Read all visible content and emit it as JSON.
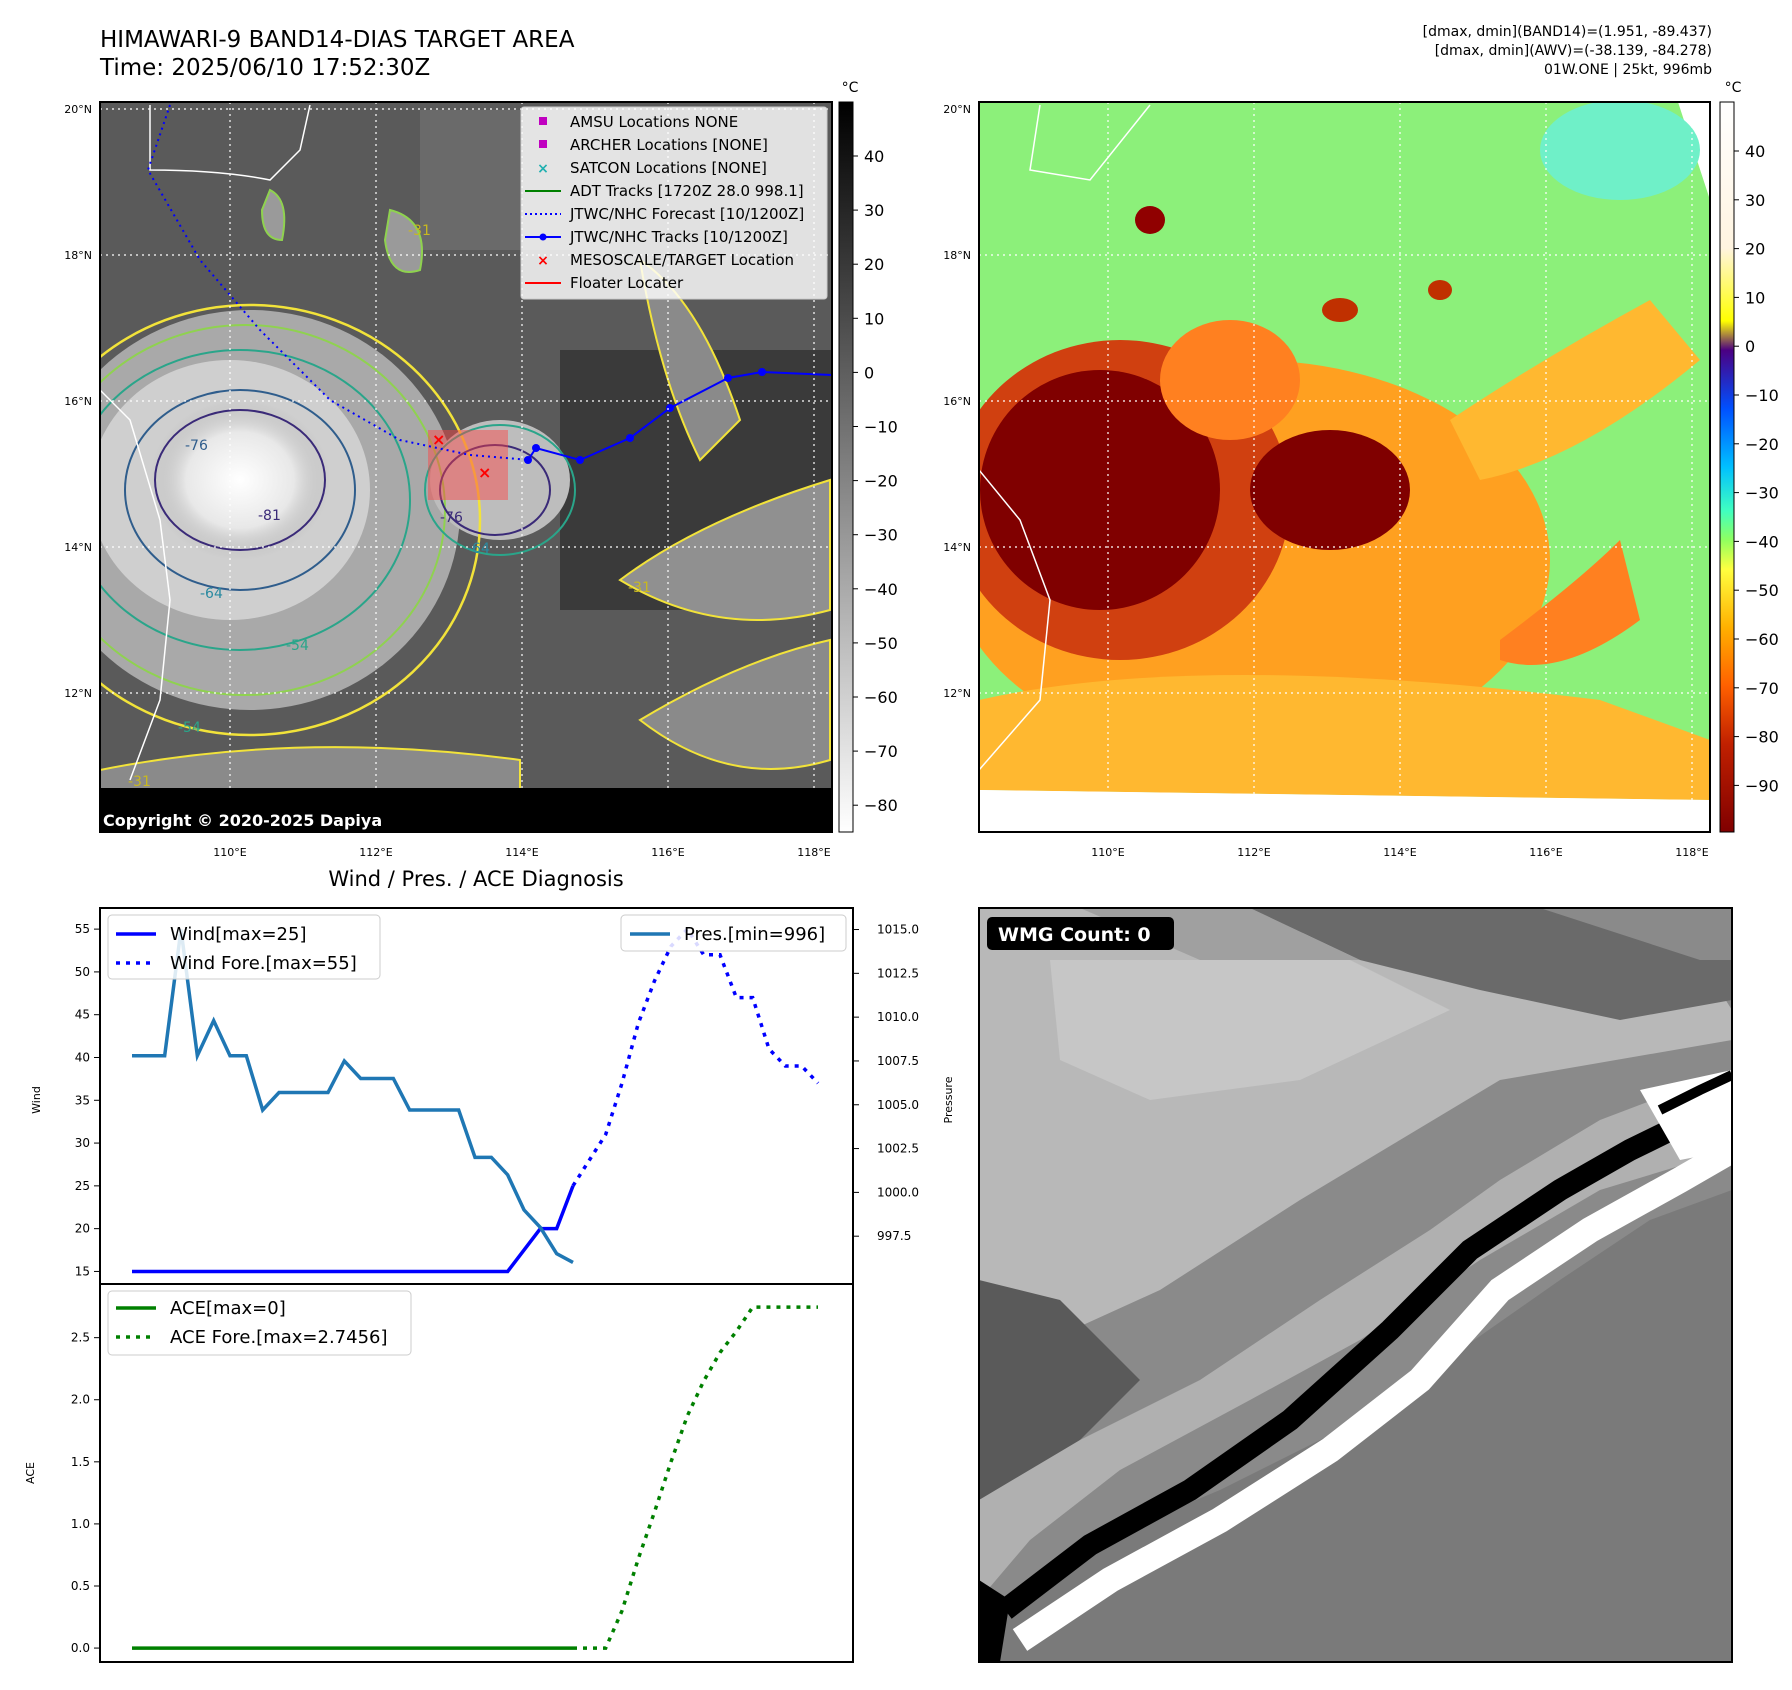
{
  "header": {
    "title_line1": "HIMAWARI-9 BAND14-DIAS TARGET AREA",
    "title_line2": "Time: 2025/06/10 17:52:30Z",
    "info_line1": "[dmax, dmin](BAND14)=(1.951, -89.437)",
    "info_line2": "[dmax, dmin](AWV)=(-38.139, -84.278)",
    "info_line3": "01W.ONE | 25kt, 996mb"
  },
  "map": {
    "lat_labels": [
      "20°N",
      "18°N",
      "16°N",
      "14°N",
      "12°N"
    ],
    "lon_labels": [
      "110°E",
      "112°E",
      "114°E",
      "116°E",
      "118°E"
    ],
    "copyright": "Copyright © 2020-2025 Dapiya",
    "contour_labels": [
      "-31",
      "-54",
      "-64",
      "-76",
      "-81",
      "-64",
      "-31",
      "-54",
      "-76",
      "-31"
    ],
    "legend": [
      {
        "label": "AMSU Locations NONE",
        "marker": "square",
        "color": "#c000c0"
      },
      {
        "label": "ARCHER Locations [NONE]",
        "marker": "square",
        "color": "#c000c0"
      },
      {
        "label": "SATCON Locations [NONE]",
        "marker": "x",
        "color": "#20b0b0"
      },
      {
        "label": "ADT Tracks [1720Z 28.0 998.1]",
        "marker": "line",
        "color": "#008000"
      },
      {
        "label": "JTWC/NHC Forecast [10/1200Z]",
        "marker": "dotted",
        "color": "#0000ff"
      },
      {
        "label": "JTWC/NHC Tracks [10/1200Z]",
        "marker": "line-dot",
        "color": "#0000ff"
      },
      {
        "label": "MESOSCALE/TARGET Location",
        "marker": "x",
        "color": "#ff0000"
      },
      {
        "label": "Floater Locater",
        "marker": "line",
        "color": "#ff0000"
      }
    ]
  },
  "colorbar_gray": {
    "unit": "°C",
    "ticks": [
      "40",
      "30",
      "20",
      "10",
      "0",
      "−10",
      "−20",
      "−30",
      "−40",
      "−50",
      "−60",
      "−70",
      "−80"
    ]
  },
  "colorbar_awv": {
    "unit": "°C",
    "ticks": [
      "40",
      "30",
      "20",
      "10",
      "0",
      "−10",
      "−20",
      "−30",
      "−40",
      "−50",
      "−60",
      "−70",
      "−80",
      "−90"
    ]
  },
  "chart_data": [
    {
      "type": "line",
      "title": "Wind / Pres. / ACE Diagnosis",
      "ylabel": "Wind",
      "ylabel_right": "Pressure",
      "ylim": [
        14,
        57
      ],
      "ylim_right": [
        995.0,
        1016.0
      ],
      "yticks": [
        15,
        20,
        25,
        30,
        35,
        40,
        45,
        50,
        55
      ],
      "yticks_right": [
        "997.5",
        "1000.0",
        "1002.5",
        "1005.0",
        "1007.5",
        "1010.0",
        "1012.5",
        "1015.0"
      ],
      "series": [
        {
          "name": "Wind[max=25]",
          "color": "#0000ff",
          "style": "solid",
          "x": [
            0,
            23,
            25,
            26,
            27
          ],
          "values": [
            15,
            15,
            20,
            20,
            25
          ]
        },
        {
          "name": "Wind Fore.[max=55]",
          "color": "#0000ff",
          "style": "dotted",
          "x": [
            27,
            28,
            29,
            30,
            31,
            32,
            33,
            34,
            35,
            36,
            37,
            38,
            39,
            40,
            41,
            42
          ],
          "values": [
            25,
            28,
            31,
            37,
            44,
            49,
            53,
            55,
            52,
            52,
            47,
            47,
            41,
            39,
            39,
            37
          ]
        },
        {
          "name": "Pres.[min=996]",
          "color": "#1f77b4",
          "style": "solid",
          "axis": "right",
          "x": [
            0,
            2,
            3,
            4,
            5,
            6,
            7,
            8,
            9,
            10,
            11,
            12,
            13,
            14,
            15,
            16,
            17,
            18,
            19,
            20,
            21,
            22,
            23,
            24,
            25,
            26,
            27
          ],
          "values": [
            1007.8,
            1007.8,
            1015.0,
            1007.8,
            1009.8,
            1007.8,
            1007.8,
            1004.7,
            1005.7,
            1005.7,
            1005.7,
            1005.7,
            1007.5,
            1006.5,
            1006.5,
            1006.5,
            1004.7,
            1004.7,
            1004.7,
            1004.7,
            1002.0,
            1002.0,
            1001.0,
            999.0,
            998.0,
            996.5,
            996.0
          ]
        }
      ]
    },
    {
      "type": "line",
      "ylabel": "ACE",
      "ylim": [
        -0.08,
        2.9
      ],
      "yticks": [
        "0.0",
        "0.5",
        "1.0",
        "1.5",
        "2.0",
        "2.5"
      ],
      "series": [
        {
          "name": "ACE[max=0]",
          "color": "#008000",
          "style": "solid",
          "x": [
            0,
            27
          ],
          "values": [
            0,
            0
          ]
        },
        {
          "name": "ACE Fore.[max=2.7456]",
          "color": "#008000",
          "style": "dotted",
          "x": [
            27,
            28,
            29,
            30,
            31,
            32,
            33,
            34,
            35,
            36,
            37,
            38,
            39,
            40,
            41,
            42
          ],
          "values": [
            0,
            0,
            0,
            0.3,
            0.72,
            1.1,
            1.5,
            1.87,
            2.15,
            2.38,
            2.55,
            2.7456,
            2.7456,
            2.7456,
            2.7456,
            2.7456
          ]
        }
      ]
    }
  ],
  "wmg": {
    "label": "WMG Count: 0"
  }
}
